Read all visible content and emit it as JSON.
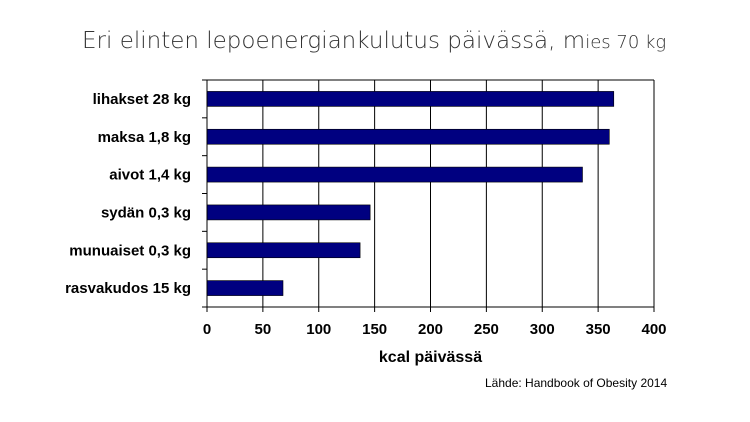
{
  "title_main": "Eri elinten lepoenergiankulutus päivässä, m",
  "title_sub": "ies 70 kg",
  "source": "Lähde: Handbook  of Obesity 2014",
  "colors": {
    "bar": "#000080",
    "grid": "#000000"
  },
  "chart_data": {
    "type": "bar",
    "orientation": "horizontal",
    "title": "Eri elinten lepoenergiankulutus päivässä, mies 70 kg",
    "categories": [
      "lihakset 28 kg",
      "maksa 1,8 kg",
      "aivot 1,4 kg",
      "sydän 0,3 kg",
      "munuaiset 0,3 kg",
      "rasvakudos 15 kg"
    ],
    "values": [
      364,
      360,
      336,
      146,
      137,
      68
    ],
    "xlabel": "kcal päivässä",
    "ylabel": "",
    "xlim": [
      0,
      400
    ],
    "xticks": [
      "0",
      "50",
      "100",
      "150",
      "200",
      "250",
      "300",
      "350",
      "400"
    ],
    "grid": "vertical",
    "legend": "none"
  }
}
